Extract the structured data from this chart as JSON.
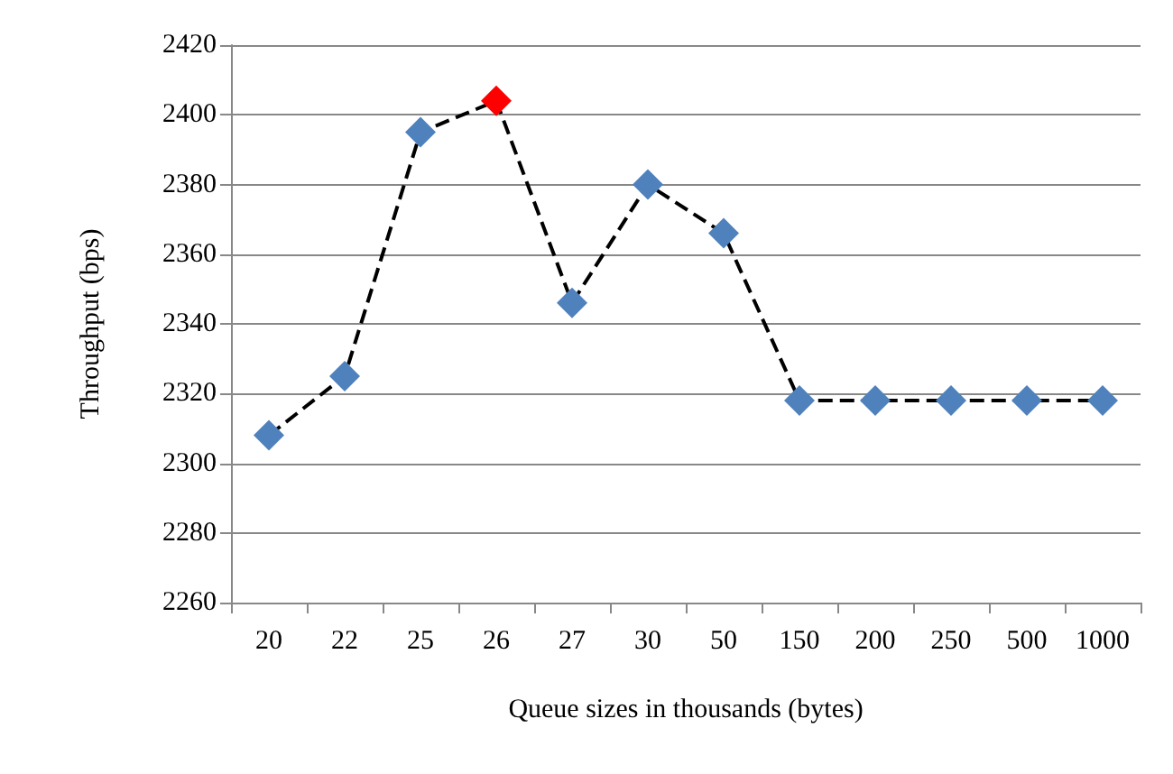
{
  "chart_data": {
    "type": "line",
    "xlabel": "Queue sizes in thousands (bytes)",
    "ylabel": "Throughput (bps)",
    "categories": [
      "20",
      "22",
      "25",
      "26",
      "27",
      "30",
      "50",
      "150",
      "200",
      "250",
      "500",
      "1000"
    ],
    "series": [
      {
        "color": "#000000",
        "values": [
          2308,
          2325,
          2395,
          2404,
          2346,
          2380,
          2366,
          2318,
          2318,
          2318,
          2318,
          2318
        ],
        "colors": [
          "#4f81bd",
          "#4f81bd",
          "#4f81bd",
          "#ff0000",
          "#4f81bd",
          "#4f81bd",
          "#4f81bd",
          "#4f81bd",
          "#4f81bd",
          "#4f81bd",
          "#4f81bd",
          "#4f81bd"
        ]
      }
    ],
    "ylim": [
      2260,
      2420
    ],
    "yticks": [
      2260,
      2280,
      2300,
      2320,
      2340,
      2360,
      2380,
      2400,
      2420
    ],
    "grid": "y",
    "marker": "diamond",
    "line_style": "dashed"
  }
}
